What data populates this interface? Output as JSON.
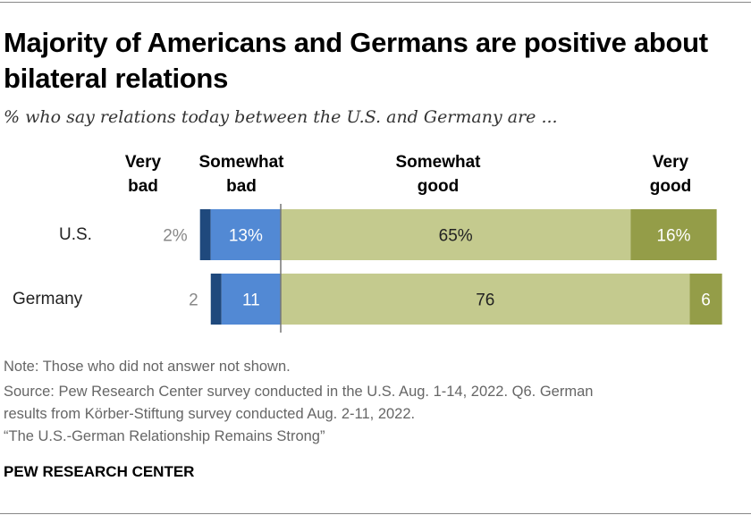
{
  "title": "Majority of Americans and Germans are positive about bilateral relations",
  "subtitle": "% who say relations today between the U.S. and Germany are ...",
  "chart_data": {
    "type": "bar",
    "orientation": "horizontal",
    "stacked": "diverging",
    "categories": [
      "U.S.",
      "Germany"
    ],
    "series": [
      {
        "name": "Very bad",
        "values": [
          2,
          2
        ],
        "labels": [
          "2%",
          "2"
        ],
        "color": "#1f497d",
        "side": "negative"
      },
      {
        "name": "Somewhat bad",
        "values": [
          13,
          11
        ],
        "labels": [
          "13%",
          "11"
        ],
        "color": "#5289d4",
        "side": "negative"
      },
      {
        "name": "Somewhat good",
        "values": [
          65,
          76
        ],
        "labels": [
          "65%",
          "76"
        ],
        "color": "#c4ca8e",
        "side": "positive"
      },
      {
        "name": "Very good",
        "values": [
          16,
          6
        ],
        "labels": [
          "16%",
          "6"
        ],
        "color": "#949d48",
        "side": "positive"
      }
    ],
    "headers": [
      [
        "Very",
        "bad"
      ],
      [
        "Somewhat",
        "bad"
      ],
      [
        "Somewhat",
        "good"
      ],
      [
        "Very",
        "good"
      ]
    ]
  },
  "notes": [
    "Note: Those who did not answer not shown.",
    "Source: Pew Research Center survey conducted in the U.S. Aug. 1-14, 2022. Q6. German",
    "results from Körber-Stiftung survey conducted Aug. 2-11, 2022.",
    "“The U.S.-German Relationship Remains Strong”"
  ],
  "brand": "PEW RESEARCH CENTER"
}
